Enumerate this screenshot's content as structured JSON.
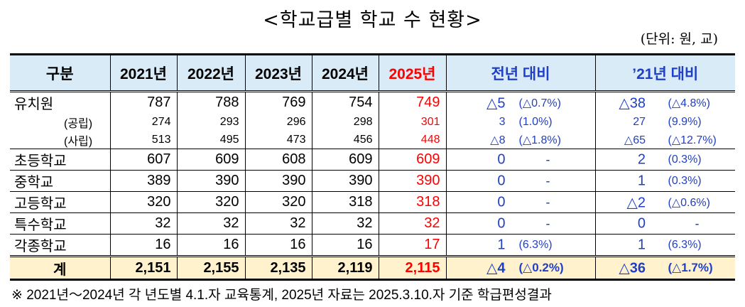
{
  "title": "<학교급별 학교 수 현황>",
  "unit": "(단위: 원, 교)",
  "headers": {
    "category": "구분",
    "years": [
      "2021년",
      "2022년",
      "2023년",
      "2024년",
      "2025년"
    ],
    "cmp_prev": "전년 대비",
    "cmp_2021": "’21년 대비"
  },
  "rows": [
    {
      "label": "유치원",
      "values": [
        "787",
        "788",
        "769",
        "754",
        "749"
      ],
      "prev": [
        "△5",
        "(△0.7%)"
      ],
      "base": [
        "△38",
        "(△4.8%)"
      ]
    },
    {
      "label": "(공립)",
      "values": [
        "274",
        "293",
        "296",
        "298",
        "301"
      ],
      "prev": [
        "3",
        "(1.0%)"
      ],
      "base": [
        "27",
        "(9.9%)"
      ]
    },
    {
      "label": "(사립)",
      "values": [
        "513",
        "495",
        "473",
        "456",
        "448"
      ],
      "prev": [
        "△8",
        "(△1.8%)"
      ],
      "base": [
        "△65",
        "(△12.7%)"
      ]
    },
    {
      "label": "초등학교",
      "values": [
        "607",
        "609",
        "608",
        "609",
        "609"
      ],
      "prev": [
        "0",
        "-"
      ],
      "base": [
        "2",
        "(0.3%)"
      ]
    },
    {
      "label": "중학교",
      "values": [
        "389",
        "390",
        "390",
        "390",
        "390"
      ],
      "prev": [
        "0",
        "-"
      ],
      "base": [
        "1",
        "(0.3%)"
      ]
    },
    {
      "label": "고등학교",
      "values": [
        "320",
        "320",
        "320",
        "318",
        "318"
      ],
      "prev": [
        "0",
        "-"
      ],
      "base": [
        "△2",
        "(△0.6%)"
      ]
    },
    {
      "label": "특수학교",
      "values": [
        "32",
        "32",
        "32",
        "32",
        "32"
      ],
      "prev": [
        "0",
        "-"
      ],
      "base": [
        "0",
        "-"
      ]
    },
    {
      "label": "각종학교",
      "values": [
        "16",
        "16",
        "16",
        "16",
        "17"
      ],
      "prev": [
        "1",
        "(6.3%)"
      ],
      "base": [
        "1",
        "(6.3%)"
      ]
    }
  ],
  "total": {
    "label": "계",
    "values": [
      "2,151",
      "2,155",
      "2,135",
      "2,119",
      "2,115"
    ],
    "prev": [
      "△4",
      "(△0.2%)"
    ],
    "base": [
      "△36",
      "(△1.7%)"
    ]
  },
  "note": "※ 2021년～2024년 각 년도별 4.1.자 교육통계, 2025년 자료는 2025.3.10.자 기준 학급편성결과",
  "colors": {
    "header_bg": "#d9ebf7",
    "total_bg": "#fff2cc",
    "highlight_year": "#ff0000",
    "compare_text": "#1f3fc7"
  }
}
